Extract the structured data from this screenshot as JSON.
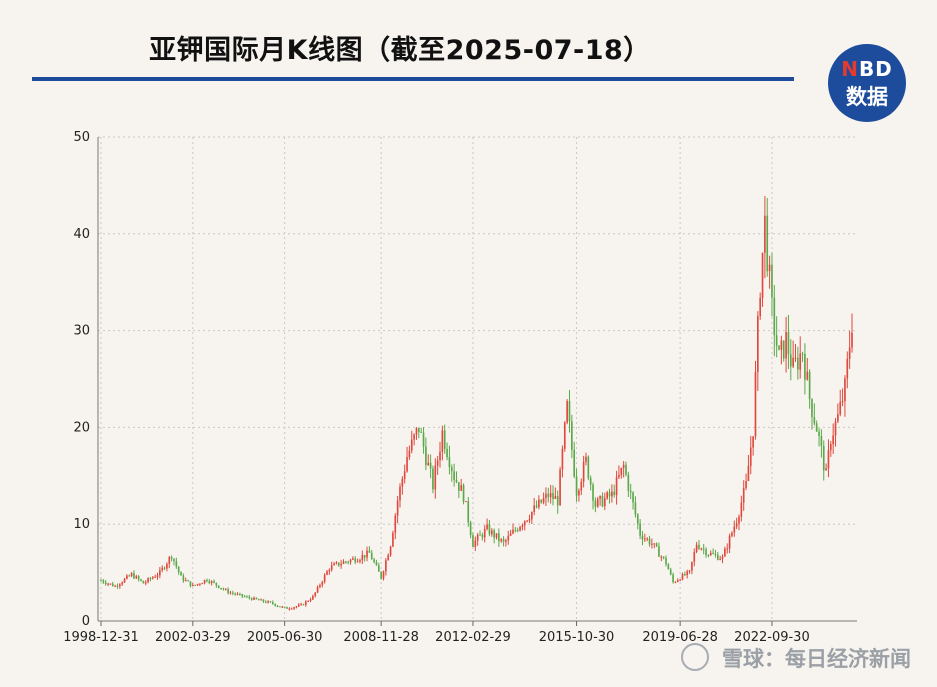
{
  "header": {
    "title": "亚钾国际月K线图（截至2025-07-18）",
    "logo_top": "NBD",
    "logo_bottom": "数据"
  },
  "footer": {
    "watermark_text": "雪球：每日经济新闻"
  },
  "colors": {
    "up": "#e0483e",
    "down": "#5aa84a",
    "title_rule": "#1b4b9a",
    "logo_bg": "#1d4c9d"
  },
  "chart_data": {
    "type": "candlestick",
    "title": "亚钾国际月K线图（截至2025-07-18）",
    "y_ticks": [
      "0",
      "10",
      "20",
      "30",
      "40",
      "50"
    ],
    "ylim": [
      0,
      50
    ],
    "x_ticks": [
      "1998-12-31",
      "2002-03-29",
      "2005-06-30",
      "2008-11-28",
      "2012-02-29",
      "2015-10-30",
      "2019-06-28",
      "2022-09-30"
    ],
    "xlim": [
      "1998-12",
      "2025-07"
    ],
    "grid": true,
    "legend": "none",
    "approx_monthly_close_anchors": [
      [
        "1998-12",
        4.2
      ],
      [
        "1999-06",
        3.6
      ],
      [
        "2000-01",
        4.8
      ],
      [
        "2000-06",
        3.9
      ],
      [
        "2001-01",
        5.0
      ],
      [
        "2001-06",
        6.8
      ],
      [
        "2001-10",
        4.5
      ],
      [
        "2002-03",
        3.6
      ],
      [
        "2002-09",
        4.3
      ],
      [
        "2003-06",
        3.0
      ],
      [
        "2004-01",
        2.5
      ],
      [
        "2004-06",
        2.2
      ],
      [
        "2005-01",
        1.8
      ],
      [
        "2005-06",
        1.3
      ],
      [
        "2006-01",
        1.6
      ],
      [
        "2006-06",
        2.5
      ],
      [
        "2007-01",
        5.5
      ],
      [
        "2007-06",
        6.0
      ],
      [
        "2008-01",
        6.5
      ],
      [
        "2008-06",
        7.0
      ],
      [
        "2008-11",
        4.5
      ],
      [
        "2009-03",
        8.0
      ],
      [
        "2009-06",
        12.5
      ],
      [
        "2009-10",
        17.0
      ],
      [
        "2010-03",
        20.0
      ],
      [
        "2010-09",
        14.0
      ],
      [
        "2011-01",
        19.5
      ],
      [
        "2011-06",
        15.0
      ],
      [
        "2011-10",
        13.0
      ],
      [
        "2012-02",
        8.0
      ],
      [
        "2012-08",
        9.5
      ],
      [
        "2013-03",
        8.0
      ],
      [
        "2013-10",
        10.0
      ],
      [
        "2014-04",
        11.5
      ],
      [
        "2014-10",
        13.0
      ],
      [
        "2015-02",
        12.5
      ],
      [
        "2015-06",
        22.0
      ],
      [
        "2015-10",
        13.5
      ],
      [
        "2016-02",
        16.5
      ],
      [
        "2016-06",
        12.0
      ],
      [
        "2017-01",
        13.0
      ],
      [
        "2017-06",
        16.0
      ],
      [
        "2018-01",
        9.0
      ],
      [
        "2018-06",
        8.0
      ],
      [
        "2018-12",
        6.0
      ],
      [
        "2019-03",
        4.0
      ],
      [
        "2019-06",
        4.5
      ],
      [
        "2019-10",
        5.0
      ],
      [
        "2020-01",
        8.0
      ],
      [
        "2020-06",
        7.0
      ],
      [
        "2020-12",
        6.5
      ],
      [
        "2021-03",
        8.5
      ],
      [
        "2021-06",
        10.5
      ],
      [
        "2021-10",
        14.0
      ],
      [
        "2022-01",
        20.0
      ],
      [
        "2022-04",
        35.0
      ],
      [
        "2022-06",
        41.0
      ],
      [
        "2022-09",
        32.0
      ],
      [
        "2022-12",
        27.0
      ],
      [
        "2023-03",
        29.0
      ],
      [
        "2023-06",
        26.0
      ],
      [
        "2023-10",
        28.0
      ],
      [
        "2024-01",
        23.0
      ],
      [
        "2024-04",
        20.0
      ],
      [
        "2024-08",
        15.0
      ],
      [
        "2024-10",
        19.0
      ],
      [
        "2025-01",
        21.0
      ],
      [
        "2025-04",
        24.0
      ],
      [
        "2025-07",
        31.0
      ]
    ],
    "notable_high": {
      "date": "2022-06",
      "value": 43.9
    },
    "last_close": {
      "date": "2025-07",
      "value": 31.0
    }
  }
}
